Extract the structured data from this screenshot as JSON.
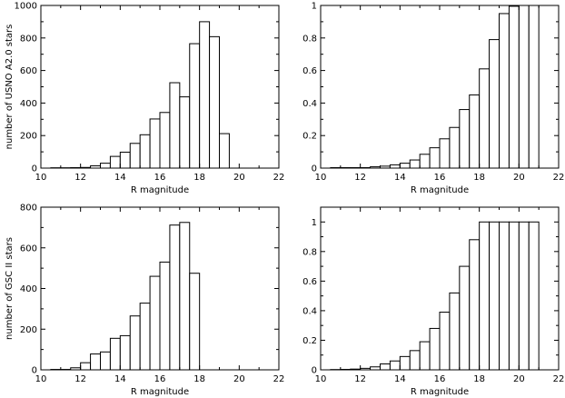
{
  "chart_data": [
    {
      "type": "bar",
      "xlabel": "R magnitude",
      "ylabel": "number of USNO A2.0 stars",
      "xlim": [
        10,
        22
      ],
      "ylim": [
        0,
        1000
      ],
      "xticks": [
        10,
        12,
        14,
        16,
        18,
        20,
        22
      ],
      "yticks": [
        0,
        200,
        400,
        600,
        800,
        1000
      ],
      "grid": false,
      "bin_width": 0.5,
      "bin_starts": [
        10.5,
        11.0,
        11.5,
        12.0,
        12.5,
        13.0,
        13.5,
        14.0,
        14.5,
        15.0,
        15.5,
        16.0,
        16.5,
        17.0,
        17.5,
        18.0,
        18.5,
        19.0,
        19.5,
        20.0
      ],
      "values": [
        2,
        2,
        3,
        4,
        14,
        30,
        72,
        98,
        152,
        205,
        302,
        342,
        525,
        438,
        765,
        900,
        808,
        212,
        0,
        0
      ]
    },
    {
      "type": "bar",
      "xlabel": "R magnitude",
      "ylabel": "",
      "xlim": [
        10,
        22
      ],
      "ylim": [
        0,
        1.0
      ],
      "xticks": [
        10,
        12,
        14,
        16,
        18,
        20,
        22
      ],
      "yticks": [
        0,
        0.2,
        0.4,
        0.6,
        0.8,
        1.0
      ],
      "grid": false,
      "bin_width": 0.5,
      "bin_starts": [
        10.5,
        11.0,
        11.5,
        12.0,
        12.5,
        13.0,
        13.5,
        14.0,
        14.5,
        15.0,
        15.5,
        16.0,
        16.5,
        17.0,
        17.5,
        18.0,
        18.5,
        19.0,
        19.5,
        20.0,
        20.5
      ],
      "values": [
        0.003,
        0.003,
        0.003,
        0.003,
        0.008,
        0.012,
        0.02,
        0.03,
        0.05,
        0.085,
        0.125,
        0.18,
        0.25,
        0.36,
        0.45,
        0.61,
        0.79,
        0.95,
        0.995,
        1.0,
        1.0
      ]
    },
    {
      "type": "bar",
      "xlabel": "R magnitude",
      "ylabel": "number of GSC II stars",
      "xlim": [
        10,
        22
      ],
      "ylim": [
        0,
        800
      ],
      "xticks": [
        10,
        12,
        14,
        16,
        18,
        20,
        22
      ],
      "yticks": [
        0,
        200,
        400,
        600,
        800
      ],
      "grid": false,
      "bin_width": 0.5,
      "bin_starts": [
        10.5,
        11.0,
        11.5,
        12.0,
        12.5,
        13.0,
        13.5,
        14.0,
        14.5,
        15.0,
        15.5,
        16.0,
        16.5,
        17.0,
        17.5,
        18.0
      ],
      "values": [
        2,
        2,
        10,
        35,
        78,
        88,
        155,
        168,
        265,
        328,
        460,
        530,
        712,
        725,
        475,
        0
      ]
    },
    {
      "type": "bar",
      "xlabel": "R magnitude",
      "ylabel": "",
      "xlim": [
        10,
        22
      ],
      "ylim": [
        0,
        1.1
      ],
      "xticks": [
        10,
        12,
        14,
        16,
        18,
        20,
        22
      ],
      "yticks": [
        0,
        0.2,
        0.4,
        0.6,
        0.8,
        1.0
      ],
      "grid": false,
      "bin_width": 0.5,
      "bin_starts": [
        10.5,
        11.0,
        11.5,
        12.0,
        12.5,
        13.0,
        13.5,
        14.0,
        14.5,
        15.0,
        15.5,
        16.0,
        16.5,
        17.0,
        17.5,
        18.0,
        18.5,
        19.0,
        19.5,
        20.0,
        20.5
      ],
      "values": [
        0.002,
        0.003,
        0.005,
        0.01,
        0.02,
        0.04,
        0.06,
        0.09,
        0.13,
        0.19,
        0.28,
        0.39,
        0.52,
        0.7,
        0.88,
        1.0,
        1.0,
        1.0,
        1.0,
        1.0,
        1.0
      ]
    }
  ]
}
